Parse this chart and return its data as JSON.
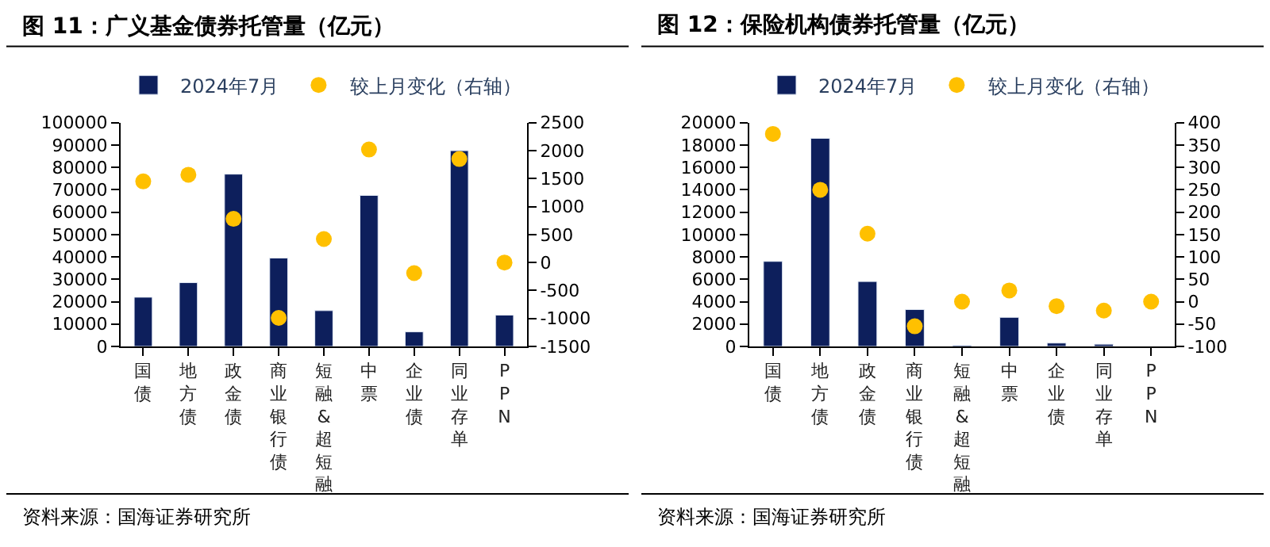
{
  "chart_data": [
    {
      "type": "bar",
      "title": "图 11：广义基金债券托管量（亿元）",
      "categories": [
        "国债",
        "地方债",
        "政金债",
        "商业银行债",
        "短融&超短融",
        "中票",
        "企业债",
        "同业存单",
        "PPN"
      ],
      "series": [
        {
          "name": "2024年7月",
          "color": "#0d1f5c",
          "values": [
            22000,
            28500,
            77000,
            39500,
            16000,
            67500,
            6500,
            87500,
            14000
          ]
        },
        {
          "name": "较上月变化（右轴）",
          "type": "scatter",
          "axis": "y2",
          "color": "#ffc000",
          "values": [
            1450,
            1570,
            780,
            -990,
            420,
            2020,
            -190,
            1850,
            0
          ]
        }
      ],
      "ylim": [
        0,
        100000
      ],
      "yticks": [
        0,
        10000,
        20000,
        30000,
        40000,
        50000,
        60000,
        70000,
        80000,
        90000,
        100000
      ],
      "y2lim": [
        -1500,
        2500
      ],
      "y2ticks": [
        -1500,
        -1000,
        -500,
        0,
        500,
        1000,
        1500,
        2000,
        2500
      ],
      "legend": "top",
      "annotations": [
        "资料来源：国海证券研究所"
      ]
    },
    {
      "type": "bar",
      "title": "图 12：保险机构债券托管量（亿元）",
      "categories": [
        "国债",
        "地方债",
        "政金债",
        "商业银行债",
        "短融&超短融",
        "中票",
        "企业债",
        "同业存单",
        "PPN"
      ],
      "series": [
        {
          "name": "2024年7月",
          "color": "#0d1f5c",
          "values": [
            7600,
            18600,
            5800,
            3300,
            100,
            2600,
            300,
            200,
            null
          ]
        },
        {
          "name": "较上月变化（右轴）",
          "type": "scatter",
          "axis": "y2",
          "color": "#ffc000",
          "values": [
            375,
            250,
            152,
            -55,
            0,
            25,
            -10,
            -20,
            0
          ]
        }
      ],
      "ylim": [
        0,
        20000
      ],
      "yticks": [
        0,
        2000,
        4000,
        6000,
        8000,
        10000,
        12000,
        14000,
        16000,
        18000,
        20000
      ],
      "y2lim": [
        -100,
        400
      ],
      "y2ticks": [
        -100,
        -50,
        0,
        50,
        100,
        150,
        200,
        250,
        300,
        350,
        400
      ],
      "legend": "top",
      "annotations": [
        "资料来源：国海证券研究所"
      ]
    }
  ]
}
